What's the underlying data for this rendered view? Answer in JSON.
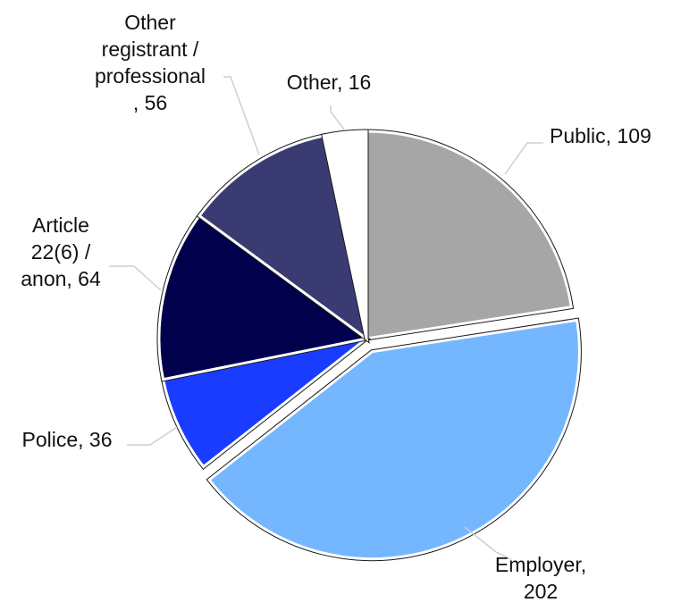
{
  "chart_data": {
    "type": "pie",
    "title": "",
    "slices": [
      {
        "label": "Public",
        "value": 109,
        "color": "#a6a6a6",
        "label_lines": [
          "Public, 109"
        ]
      },
      {
        "label": "Employer",
        "value": 202,
        "color": "#75b7ff",
        "label_lines": [
          "Employer,",
          "202"
        ]
      },
      {
        "label": "Police",
        "value": 36,
        "color": "#1a3cff",
        "label_lines": [
          "Police, 36"
        ]
      },
      {
        "label": "Article 22(6) / anon",
        "value": 64,
        "color": "#00004d",
        "label_lines": [
          "Article",
          "22(6) /",
          "anon, 64"
        ]
      },
      {
        "label": "Other registrant / professional",
        "value": 56,
        "color": "#3b3b73",
        "label_lines": [
          "Other",
          "registrant /",
          "professional",
          ", 56"
        ]
      },
      {
        "label": "Other",
        "value": 16,
        "color": "#ffffff",
        "label_lines": [
          "Other, 16"
        ]
      }
    ],
    "start_angle": "12 o'clock, clockwise",
    "exploded_slice": "Employer",
    "legend": "none",
    "slice_outline_color": "#1a1a1a",
    "leader_line_color": "#cfcfcf"
  }
}
